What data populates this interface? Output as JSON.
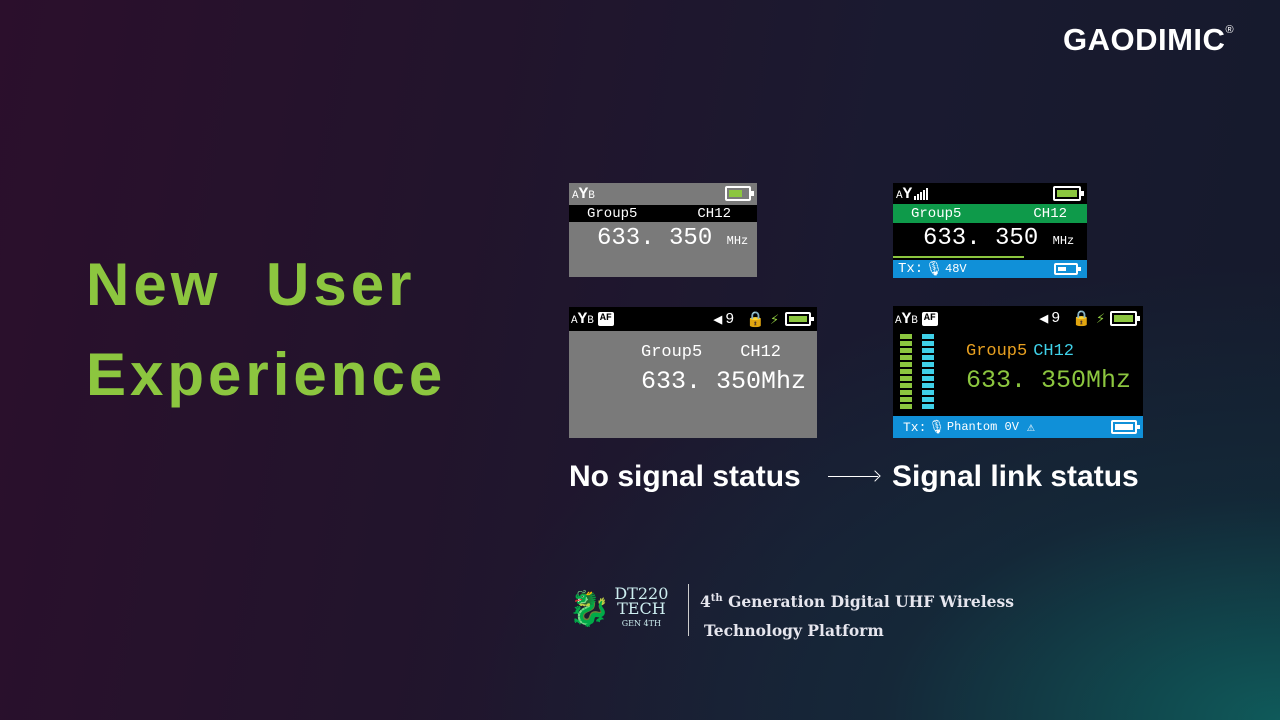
{
  "brand": {
    "logo": "GAODIMIC",
    "registered": "®"
  },
  "title": {
    "line1": "New User",
    "line2": "Experience"
  },
  "screens": {
    "no_signal_old": {
      "antenna": "A",
      "antenna_b": "B",
      "group": "Group5",
      "channel": "CH12",
      "frequency": "633. 350",
      "unit": "MHz",
      "battery_level": 0.6
    },
    "signal_old": {
      "antenna": "A",
      "group": "Group5",
      "channel": "CH12",
      "frequency": "633. 350",
      "unit": "MHz",
      "tx_label": "Tx:",
      "tx_value": "48V",
      "battery_level": 1.0,
      "tx_battery_level": 0.4
    },
    "no_signal_new": {
      "antenna": "A",
      "antenna_b": "B",
      "af": "AF",
      "volume": "9",
      "group": "Group5",
      "channel": "CH12",
      "frequency": "633. 350Mhz",
      "battery_level": 1.0
    },
    "signal_new": {
      "antenna": "A",
      "antenna_b": "B",
      "af": "AF",
      "volume": "9",
      "group": "Group5",
      "channel": "CH12",
      "frequency": "633. 350Mhz",
      "tx_label": "Tx:",
      "tx_value": "Phantom 0V",
      "battery_level": 1.0,
      "tx_battery_level": 1.0
    }
  },
  "colors": {
    "accent_green": "#8cc63f",
    "group_orange": "#e8a020",
    "channel_cyan": "#3fd0e8",
    "band_green": "#0e9a4a",
    "tx_blue": "#1090d8"
  },
  "labels": {
    "no_signal": "No signal status",
    "signal": "Signal link status"
  },
  "footer": {
    "badge_line1": "DT220",
    "badge_line2": "TECH",
    "badge_line3": "GEN 4TH",
    "gen_num": "4",
    "gen_sup": "th",
    "line1": " Generation Digital UHF Wireless",
    "line2": "Technology Platform"
  }
}
